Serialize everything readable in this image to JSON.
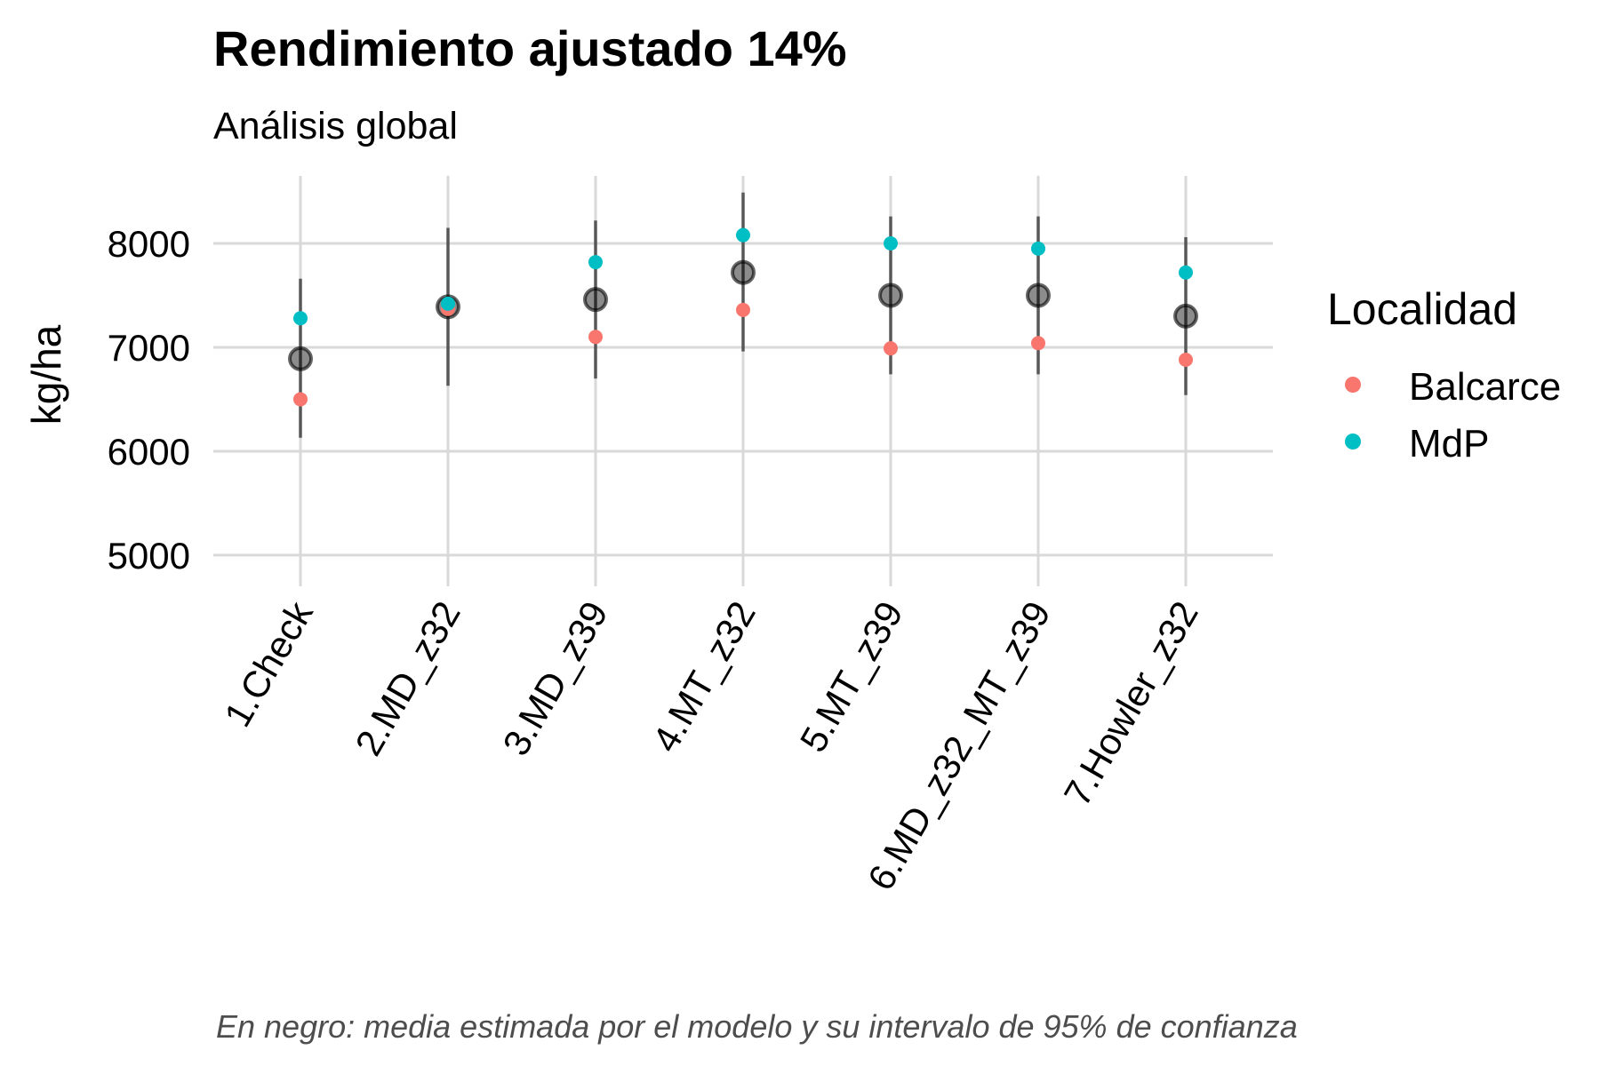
{
  "chart_data": {
    "type": "scatter",
    "title": "Rendimiento ajustado 14%",
    "subtitle": "Análisis global",
    "ylabel": "kg/ha",
    "xlabel": "",
    "caption": "En negro: media estimada por el modelo y su intervalo de 95% de confianza",
    "ylim": [
      4700,
      8650
    ],
    "yticks": [
      5000,
      6000,
      7000,
      8000
    ],
    "grid": true,
    "categories": [
      "1.Check",
      "2.MD_z32",
      "3.MD_z39",
      "4.MT_z32",
      "5.MT_z39",
      "6.MD_z32_MT_z39",
      "7.Howler_z32"
    ],
    "series": [
      {
        "name": "Balcarce",
        "color": "#F8766D",
        "values": [
          6500,
          7370,
          7100,
          7360,
          6990,
          7040,
          6880
        ]
      },
      {
        "name": "MdP",
        "color": "#00BFC4",
        "values": [
          7280,
          7420,
          7820,
          8080,
          8000,
          7950,
          7720
        ]
      }
    ],
    "model_estimates": {
      "color": "#000000",
      "means": [
        6890,
        7390,
        7460,
        7720,
        7500,
        7500,
        7300
      ],
      "ci_lower": [
        6130,
        6630,
        6700,
        6960,
        6740,
        6740,
        6540
      ],
      "ci_upper": [
        7660,
        8150,
        8220,
        8490,
        8260,
        8260,
        8060
      ]
    },
    "legend": {
      "title": "Localidad",
      "position": "right"
    }
  }
}
